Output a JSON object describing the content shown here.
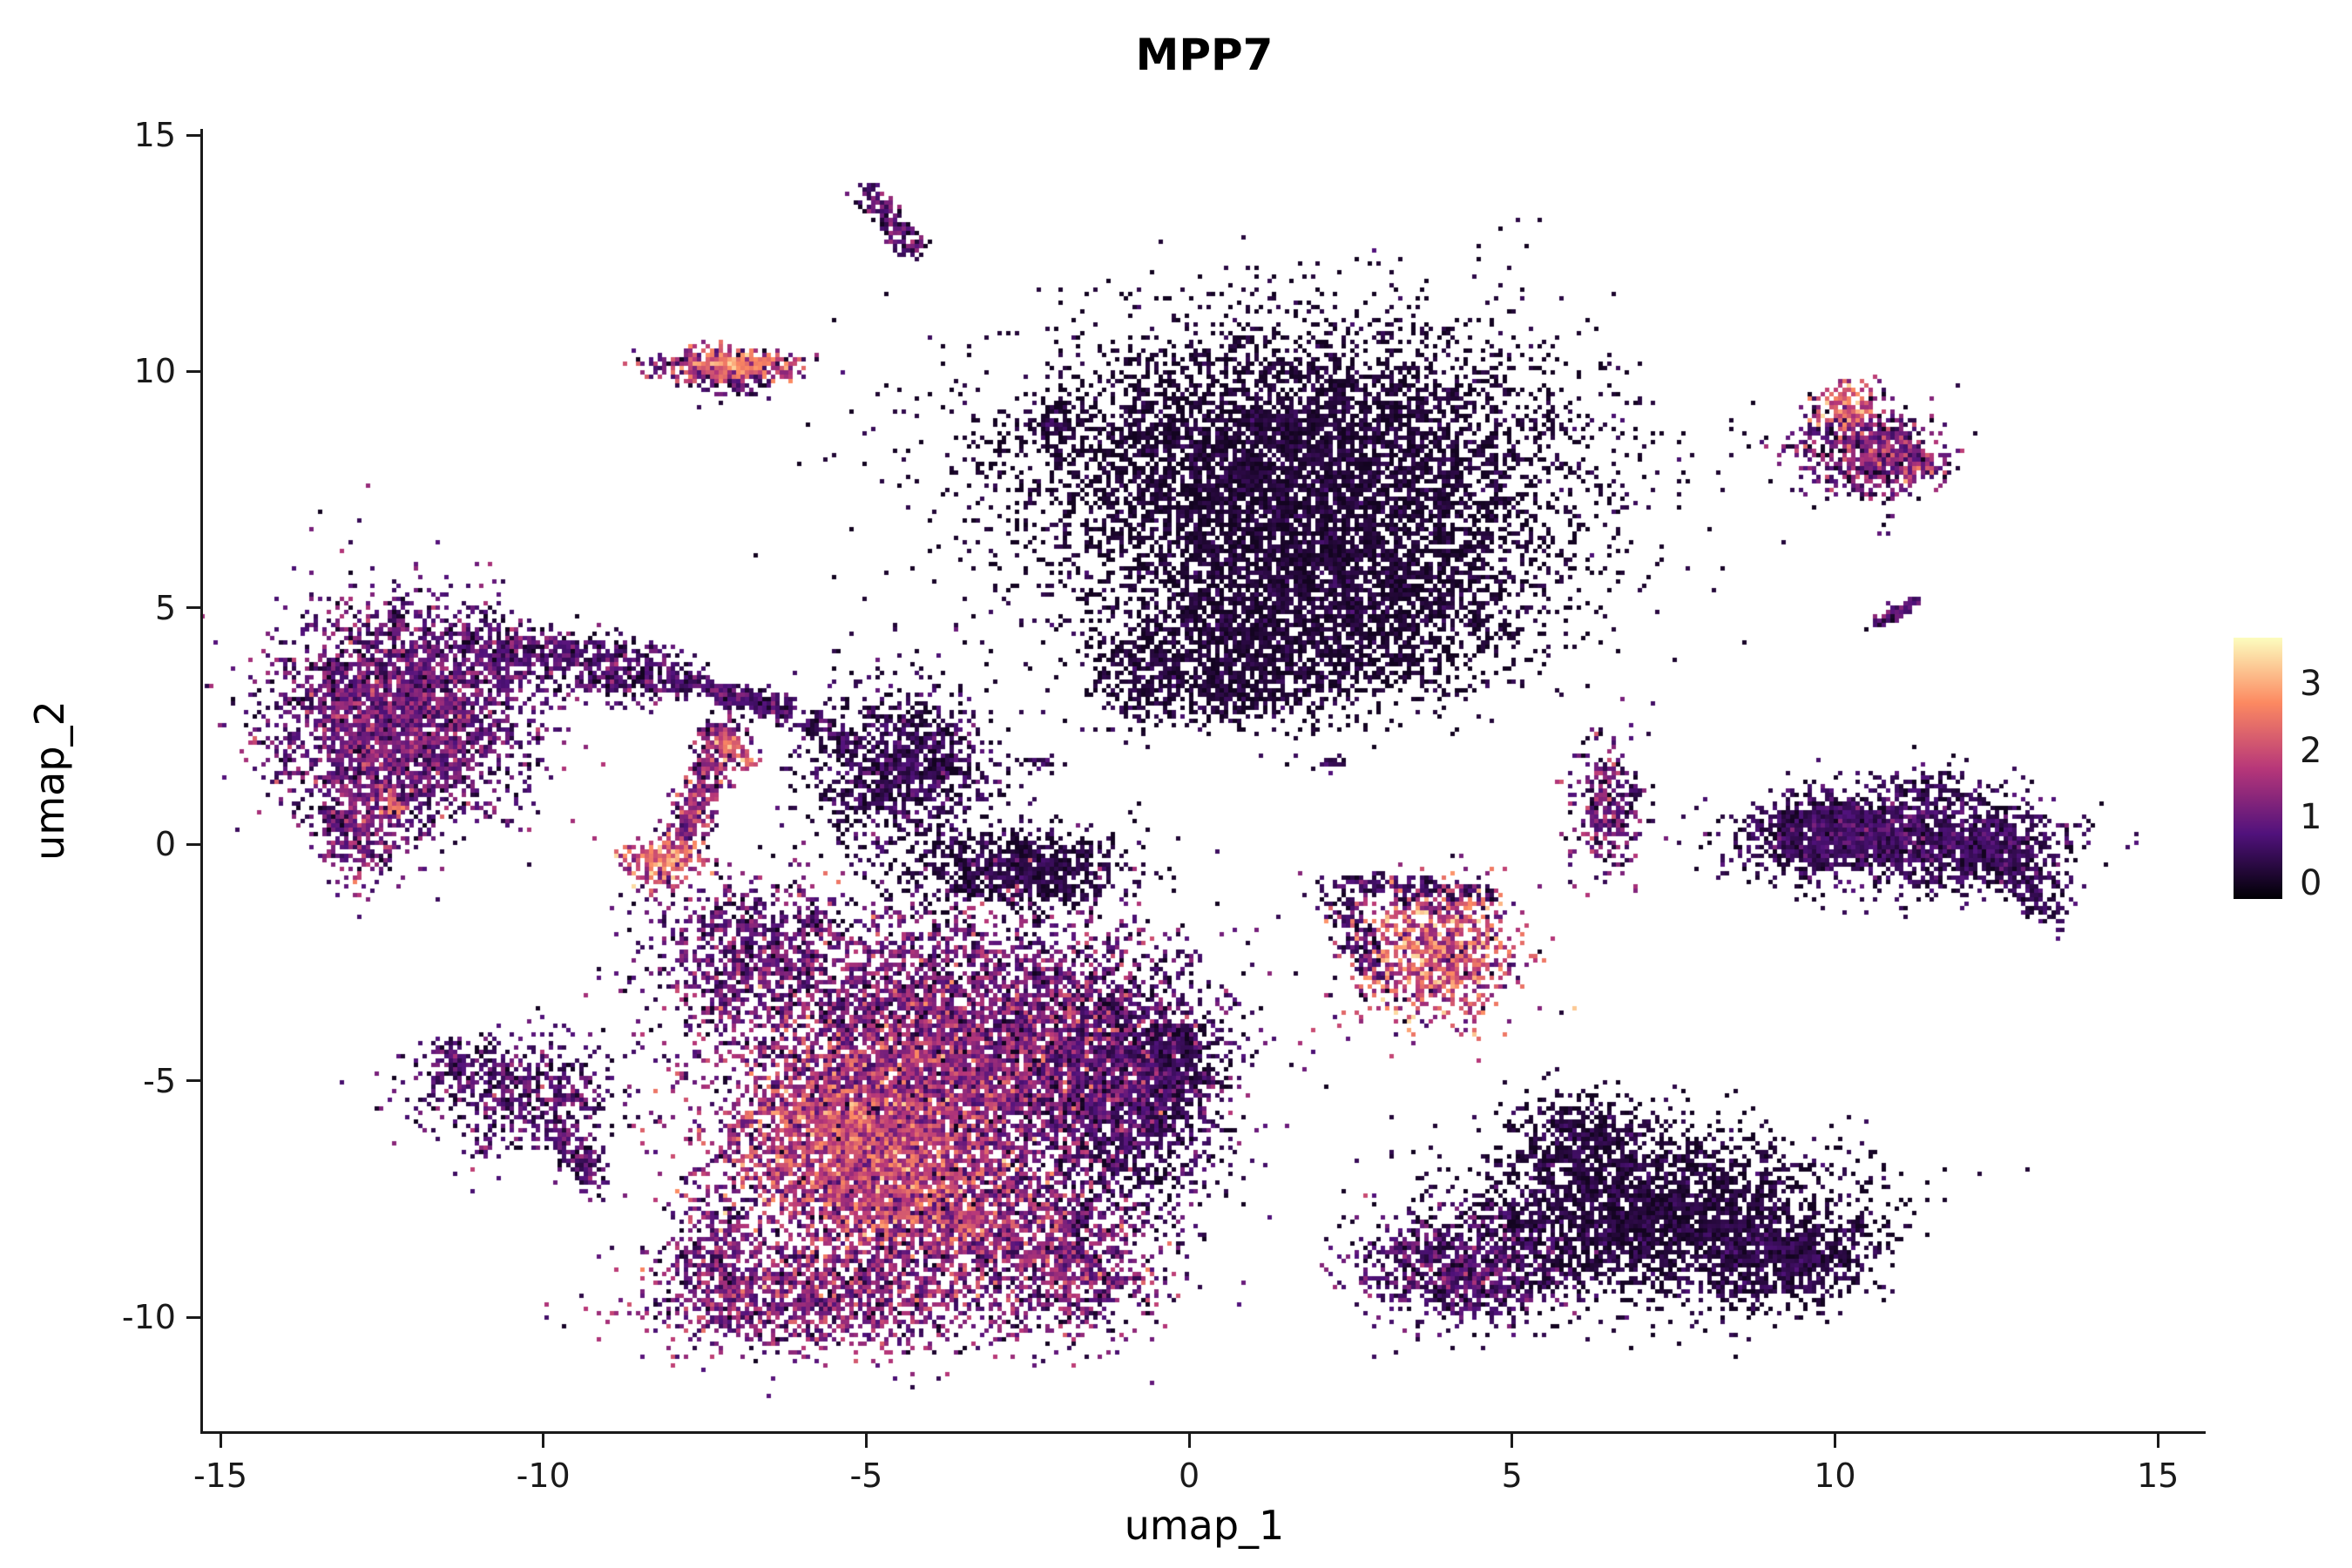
{
  "chart_data": {
    "type": "scatter",
    "title": "MPP7",
    "xlabel": "umap_1",
    "ylabel": "umap_2",
    "xlim": [
      -15.27,
      15.74
    ],
    "ylim": [
      -12.41,
      15.13
    ],
    "x_ticks": [
      -15,
      -10,
      -5,
      0,
      5,
      10,
      15
    ],
    "y_ticks": [
      -10,
      -5,
      0,
      5,
      10,
      15
    ],
    "grid": false,
    "point_size": 5,
    "legend_position": "right",
    "colorbar": {
      "ticks": [
        0,
        1,
        2,
        3
      ],
      "domain": [
        -0.23,
        3.7
      ],
      "stops": [
        [
          0.0,
          "#000004"
        ],
        [
          0.25,
          "#51127c"
        ],
        [
          0.5,
          "#b73779"
        ],
        [
          0.75,
          "#fc8961"
        ],
        [
          1.0,
          "#fcfdbf"
        ]
      ]
    },
    "clusters": [
      {
        "name": "top-streak",
        "shape": "line",
        "x1": -5.05,
        "y1": 13.85,
        "x2": -4.25,
        "y2": 12.6,
        "w": 0.12,
        "n": 190,
        "expr": [
          0.55,
          0.5
        ]
      },
      {
        "name": "upper-left-blob",
        "shape": "gauss",
        "cx": -7.25,
        "cy": 10.15,
        "sx": 0.55,
        "sy": 0.18,
        "n": 480,
        "expr": [
          1.1,
          0.8
        ]
      },
      {
        "name": "upper-left-hot",
        "shape": "gauss",
        "cx": -7.0,
        "cy": 10.2,
        "sx": 0.28,
        "sy": 0.12,
        "n": 160,
        "expr": [
          2.2,
          0.5
        ]
      },
      {
        "name": "upper-left-sparse",
        "shape": "gauss",
        "cx": -7.05,
        "cy": 9.75,
        "sx": 0.3,
        "sy": 0.2,
        "n": 60,
        "expr": [
          0.6,
          0.4
        ]
      },
      {
        "name": "top-center-main",
        "shape": "gauss",
        "cx": 1.6,
        "cy": 7.9,
        "sx": 2.2,
        "sy": 1.55,
        "n": 7000,
        "expr": [
          0.08,
          0.2
        ]
      },
      {
        "name": "top-center-lower",
        "shape": "gauss",
        "cx": 2.2,
        "cy": 4.9,
        "sx": 1.5,
        "sy": 0.95,
        "n": 2200,
        "expr": [
          0.08,
          0.2
        ]
      },
      {
        "name": "top-center-left-lobe",
        "shape": "gauss",
        "cx": 0.5,
        "cy": 3.7,
        "sx": 0.9,
        "sy": 0.55,
        "n": 900,
        "expr": [
          0.1,
          0.2
        ]
      },
      {
        "name": "top-center-left-streak",
        "shape": "gauss",
        "cx": -0.85,
        "cy": 3.9,
        "sx": 0.3,
        "sy": 0.75,
        "n": 140,
        "expr": [
          0.12,
          0.2
        ]
      },
      {
        "name": "top-center-left-dot",
        "shape": "gauss",
        "cx": -2.1,
        "cy": 8.9,
        "sx": 0.18,
        "sy": 0.14,
        "n": 40,
        "expr": [
          0.2,
          0.25
        ]
      },
      {
        "name": "upper-right-blob",
        "shape": "gauss",
        "cx": 10.45,
        "cy": 8.4,
        "sx": 0.55,
        "sy": 0.5,
        "n": 650,
        "expr": [
          0.7,
          0.6
        ]
      },
      {
        "name": "upper-right-hot",
        "shape": "gauss",
        "cx": 10.15,
        "cy": 9.2,
        "sx": 0.22,
        "sy": 0.33,
        "n": 130,
        "expr": [
          2.0,
          0.6
        ]
      },
      {
        "name": "upper-right-mid",
        "shape": "gauss",
        "cx": 10.95,
        "cy": 8.15,
        "sx": 0.38,
        "sy": 0.3,
        "n": 170,
        "expr": [
          1.2,
          0.7
        ]
      },
      {
        "name": "right-tiny-streak",
        "shape": "line",
        "x1": 10.6,
        "y1": 4.7,
        "x2": 11.25,
        "y2": 5.2,
        "w": 0.07,
        "n": 70,
        "expr": [
          0.5,
          0.4
        ]
      },
      {
        "name": "left-crescent-main",
        "shape": "gauss",
        "cx": -12.2,
        "cy": 2.8,
        "sx": 0.95,
        "sy": 1.1,
        "n": 3200,
        "expr": [
          0.75,
          0.5
        ]
      },
      {
        "name": "left-crescent-tail",
        "shape": "line",
        "x1": -11.3,
        "y1": 4.2,
        "x2": -8.0,
        "y2": 3.6,
        "w": 0.32,
        "n": 750,
        "expr": [
          0.5,
          0.45
        ]
      },
      {
        "name": "left-crescent-arc",
        "shape": "line",
        "x1": -8.0,
        "y1": 3.55,
        "x2": -6.2,
        "y2": 2.9,
        "w": 0.13,
        "n": 220,
        "expr": [
          0.4,
          0.4
        ]
      },
      {
        "name": "left-crescent-tip",
        "shape": "gauss",
        "cx": -12.9,
        "cy": 0.6,
        "sx": 0.33,
        "sy": 0.7,
        "n": 420,
        "expr": [
          0.9,
          0.5
        ]
      },
      {
        "name": "left-crescent-reddot",
        "shape": "gauss",
        "cx": -12.35,
        "cy": 0.95,
        "sx": 0.12,
        "sy": 0.12,
        "n": 28,
        "expr": [
          2.2,
          0.4
        ]
      },
      {
        "name": "mid-triangle",
        "shape": "gauss",
        "cx": -4.5,
        "cy": 1.6,
        "sx": 0.72,
        "sy": 0.85,
        "n": 1150,
        "expr": [
          0.25,
          0.35
        ]
      },
      {
        "name": "mid-link-streak",
        "shape": "line",
        "x1": -7.5,
        "y1": 3.3,
        "x2": -5.3,
        "y2": 2.3,
        "w": 0.13,
        "n": 160,
        "expr": [
          0.4,
          0.4
        ]
      },
      {
        "name": "hot-streak-vertical",
        "shape": "line",
        "x1": -7.2,
        "y1": 2.6,
        "x2": -7.9,
        "y2": 0.0,
        "w": 0.16,
        "n": 420,
        "expr": [
          1.0,
          0.7
        ]
      },
      {
        "name": "hot-streak-bottom",
        "shape": "gauss",
        "cx": -8.2,
        "cy": -0.3,
        "sx": 0.3,
        "sy": 0.28,
        "n": 240,
        "expr": [
          1.8,
          0.7
        ]
      },
      {
        "name": "hot-streak-diag",
        "shape": "line",
        "x1": -7.35,
        "y1": 2.4,
        "x2": -6.8,
        "y2": 1.75,
        "w": 0.09,
        "n": 95,
        "expr": [
          1.8,
          0.6
        ]
      },
      {
        "name": "speck-a",
        "shape": "gauss",
        "cx": -2.3,
        "cy": 1.8,
        "sx": 0.15,
        "sy": 0.08,
        "n": 25,
        "expr": [
          0.3,
          0.3
        ]
      },
      {
        "name": "speck-b",
        "shape": "gauss",
        "cx": 2.15,
        "cy": 1.75,
        "sx": 0.12,
        "sy": 0.1,
        "n": 20,
        "expr": [
          0.3,
          0.3
        ]
      },
      {
        "name": "bl-dark-knob",
        "shape": "gauss",
        "cx": -2.7,
        "cy": -0.45,
        "sx": 0.85,
        "sy": 0.42,
        "n": 850,
        "expr": [
          0.15,
          0.25
        ]
      },
      {
        "name": "bl-left-upper",
        "shape": "gauss",
        "cx": -6.8,
        "cy": -2.3,
        "sx": 0.8,
        "sy": 0.8,
        "n": 950,
        "expr": [
          0.7,
          0.5
        ]
      },
      {
        "name": "bl-main",
        "shape": "gauss",
        "cx": -3.6,
        "cy": -4.3,
        "sx": 1.6,
        "sy": 1.4,
        "n": 5600,
        "expr": [
          0.9,
          0.6
        ]
      },
      {
        "name": "bl-hot-core",
        "shape": "gauss",
        "cx": -5.2,
        "cy": -6.3,
        "sx": 1.05,
        "sy": 1.0,
        "n": 2900,
        "expr": [
          1.5,
          0.7
        ]
      },
      {
        "name": "bl-hot-lower",
        "shape": "gauss",
        "cx": -4.0,
        "cy": -7.8,
        "sx": 0.9,
        "sy": 0.75,
        "n": 1500,
        "expr": [
          1.2,
          0.7
        ]
      },
      {
        "name": "bl-right-lobe",
        "shape": "gauss",
        "cx": -1.2,
        "cy": -5.2,
        "sx": 0.8,
        "sy": 1.3,
        "n": 2100,
        "expr": [
          0.35,
          0.35
        ]
      },
      {
        "name": "bl-right-tip",
        "shape": "gauss",
        "cx": -0.3,
        "cy": -4.6,
        "sx": 0.3,
        "sy": 0.5,
        "n": 420,
        "expr": [
          0.15,
          0.25
        ]
      },
      {
        "name": "bl-bottom-tail",
        "shape": "gauss",
        "cx": -5.8,
        "cy": -9.6,
        "sx": 1.35,
        "sy": 0.55,
        "n": 1350,
        "expr": [
          1.0,
          0.6
        ]
      },
      {
        "name": "bl-frag",
        "shape": "gauss",
        "cx": -7.3,
        "cy": -8.5,
        "sx": 0.42,
        "sy": 0.68,
        "n": 320,
        "expr": [
          0.8,
          0.5
        ]
      },
      {
        "name": "bl-bottom-right",
        "shape": "gauss",
        "cx": -2.0,
        "cy": -8.8,
        "sx": 0.8,
        "sy": 0.8,
        "n": 950,
        "expr": [
          0.9,
          0.6
        ]
      },
      {
        "name": "left-small-dark",
        "shape": "gauss",
        "cx": -10.3,
        "cy": -5.2,
        "sx": 0.78,
        "sy": 0.6,
        "n": 580,
        "expr": [
          0.55,
          0.45
        ]
      },
      {
        "name": "left-small-tail",
        "shape": "line",
        "x1": -9.8,
        "y1": -6.0,
        "x2": -9.2,
        "y2": -7.2,
        "w": 0.18,
        "n": 150,
        "expr": [
          0.6,
          0.4
        ]
      },
      {
        "name": "left-small-tip",
        "shape": "gauss",
        "cx": -11.35,
        "cy": -4.6,
        "sx": 0.3,
        "sy": 0.28,
        "n": 110,
        "expr": [
          0.5,
          0.4
        ]
      },
      {
        "name": "center-hot",
        "shape": "gauss",
        "cx": 3.8,
        "cy": -2.3,
        "sx": 0.62,
        "sy": 0.72,
        "n": 950,
        "expr": [
          1.7,
          0.8
        ]
      },
      {
        "name": "center-hot-rim",
        "shape": "line",
        "x1": 2.2,
        "y1": -0.75,
        "x2": 4.7,
        "y2": -1.05,
        "w": 0.14,
        "n": 210,
        "expr": [
          0.35,
          0.3
        ]
      },
      {
        "name": "center-hot-leftedge",
        "shape": "line",
        "x1": 2.15,
        "y1": -0.9,
        "x2": 3.0,
        "y2": -2.9,
        "w": 0.16,
        "n": 150,
        "expr": [
          0.4,
          0.35
        ]
      },
      {
        "name": "mid-small",
        "shape": "gauss",
        "cx": 6.45,
        "cy": 0.85,
        "sx": 0.28,
        "sy": 0.7,
        "n": 310,
        "expr": [
          0.8,
          0.6
        ]
      },
      {
        "name": "right-band-core",
        "shape": "gauss",
        "cx": 9.9,
        "cy": 0.3,
        "sx": 0.55,
        "sy": 0.32,
        "n": 650,
        "expr": [
          0.2,
          0.25
        ]
      },
      {
        "name": "right-band",
        "shape": "gauss",
        "cx": 10.7,
        "cy": 0.15,
        "sx": 1.15,
        "sy": 0.45,
        "n": 1450,
        "expr": [
          0.35,
          0.35
        ]
      },
      {
        "name": "right-band-ext",
        "shape": "gauss",
        "cx": 12.4,
        "cy": -0.1,
        "sx": 0.6,
        "sy": 0.45,
        "n": 520,
        "expr": [
          0.25,
          0.3
        ]
      },
      {
        "name": "right-band-tail",
        "shape": "line",
        "x1": 12.8,
        "y1": -0.5,
        "x2": 13.3,
        "y2": -1.5,
        "w": 0.22,
        "n": 120,
        "expr": [
          0.3,
          0.3
        ]
      },
      {
        "name": "right-band-top",
        "shape": "gauss",
        "cx": 11.2,
        "cy": 1.2,
        "sx": 0.75,
        "sy": 0.28,
        "n": 160,
        "expr": [
          0.3,
          0.3
        ]
      },
      {
        "name": "br-left-knob",
        "shape": "gauss",
        "cx": 4.2,
        "cy": -8.9,
        "sx": 0.78,
        "sy": 0.58,
        "n": 950,
        "expr": [
          0.55,
          0.45
        ]
      },
      {
        "name": "br-main",
        "shape": "gauss",
        "cx": 7.2,
        "cy": -7.8,
        "sx": 1.45,
        "sy": 0.9,
        "n": 2900,
        "expr": [
          0.12,
          0.22
        ]
      },
      {
        "name": "br-top-bump",
        "shape": "gauss",
        "cx": 6.0,
        "cy": -6.2,
        "sx": 0.5,
        "sy": 0.5,
        "n": 420,
        "expr": [
          0.15,
          0.25
        ]
      },
      {
        "name": "br-right-tip",
        "shape": "gauss",
        "cx": 9.2,
        "cy": -8.7,
        "sx": 0.68,
        "sy": 0.5,
        "n": 720,
        "expr": [
          0.2,
          0.25
        ]
      }
    ]
  }
}
